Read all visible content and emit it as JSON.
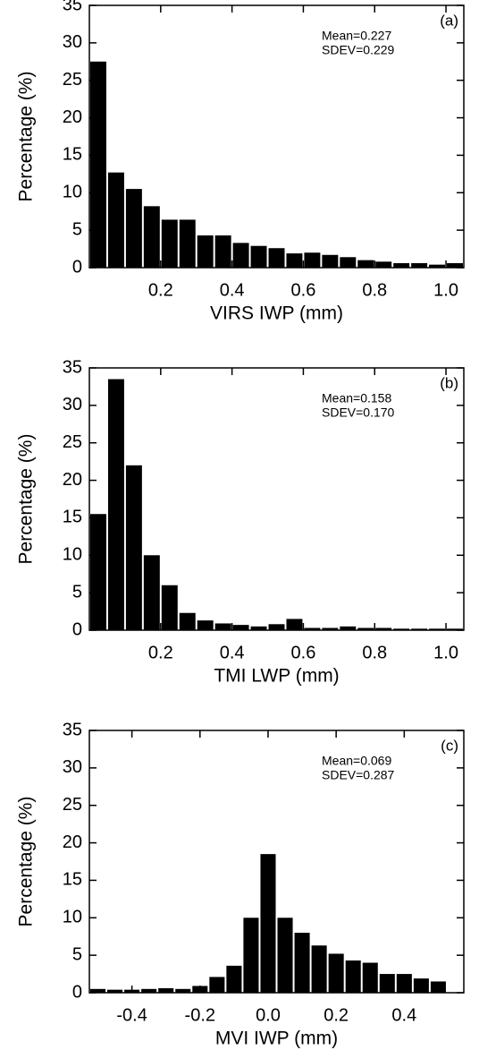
{
  "chart_data": [
    {
      "type": "histogram",
      "label": "(a)",
      "stats": [
        "Mean=0.227",
        "SDEV=0.229"
      ],
      "xlabel": "VIRS IWP (mm)",
      "ylabel": "Percentage (%)",
      "bins": [
        0,
        0.05,
        0.1,
        0.15,
        0.2,
        0.25,
        0.3,
        0.35,
        0.4,
        0.45,
        0.5,
        0.55,
        0.6,
        0.65,
        0.7,
        0.75,
        0.8,
        0.85,
        0.9,
        0.95,
        1.0,
        1.05
      ],
      "values": [
        27.5,
        12.7,
        10.5,
        8.2,
        6.4,
        6.4,
        4.3,
        4.3,
        3.3,
        2.9,
        2.6,
        1.9,
        2.0,
        1.7,
        1.4,
        1.0,
        0.8,
        0.6,
        0.6,
        0.4,
        0.6
      ],
      "color": "#000000",
      "xlim": [
        0,
        1.05
      ],
      "ylim": [
        0,
        35
      ],
      "xticks": [
        0.2,
        0.4,
        0.6,
        0.8,
        {
          "value": 1,
          "label": "1.0"
        }
      ],
      "yticks": [
        0,
        5,
        10,
        15,
        20,
        25,
        30,
        35
      ]
    },
    {
      "type": "histogram",
      "label": "(b)",
      "stats": [
        "Mean=0.158",
        "SDEV=0.170"
      ],
      "xlabel": "TMI LWP (mm)",
      "ylabel": "Percentage (%)",
      "bins": [
        0,
        0.05,
        0.1,
        0.15,
        0.2,
        0.25,
        0.3,
        0.35,
        0.4,
        0.45,
        0.5,
        0.55,
        0.6,
        0.65,
        0.7,
        0.75,
        0.8,
        0.85,
        0.9,
        0.95,
        1.0,
        1.05
      ],
      "values": [
        15.5,
        33.5,
        22,
        10,
        6,
        2.3,
        1.3,
        0.9,
        0.7,
        0.5,
        0.8,
        1.5,
        0.3,
        0.3,
        0.5,
        0.3,
        0.3,
        0.2,
        0.2,
        0.2,
        0.2
      ],
      "color": "#000000",
      "xlim": [
        0,
        1.05
      ],
      "ylim": [
        0,
        35
      ],
      "xticks": [
        0.2,
        0.4,
        0.6,
        0.8,
        {
          "value": 1,
          "label": "1.0"
        }
      ],
      "yticks": [
        0,
        5,
        10,
        15,
        20,
        25,
        30,
        35
      ]
    },
    {
      "type": "histogram",
      "label": "(c)",
      "stats": [
        "Mean=0.069",
        "SDEV=0.287"
      ],
      "xlabel": "MVI IWP (mm)",
      "ylabel": "Percentage (%)",
      "bins": [
        -0.525,
        -0.475,
        -0.425,
        -0.375,
        -0.325,
        -0.275,
        -0.225,
        -0.175,
        -0.125,
        -0.075,
        -0.025,
        0.025,
        0.075,
        0.125,
        0.175,
        0.225,
        0.275,
        0.325,
        0.375,
        0.425,
        0.475,
        0.525
      ],
      "values": [
        0.5,
        0.4,
        0.4,
        0.5,
        0.6,
        0.5,
        0.9,
        2.1,
        3.6,
        10,
        18.5,
        10,
        8,
        6.3,
        5.2,
        4.3,
        4.0,
        2.5,
        2.5,
        1.9,
        1.5
      ],
      "color": "#000000",
      "xlim": [
        -0.525,
        0.575
      ],
      "ylim": [
        0,
        35
      ],
      "xticks": [
        -0.4,
        -0.2,
        {
          "value": 0,
          "label": "0.0"
        },
        0.2,
        0.4
      ],
      "yticks": [
        0,
        5,
        10,
        15,
        20,
        25,
        30,
        35
      ]
    }
  ]
}
